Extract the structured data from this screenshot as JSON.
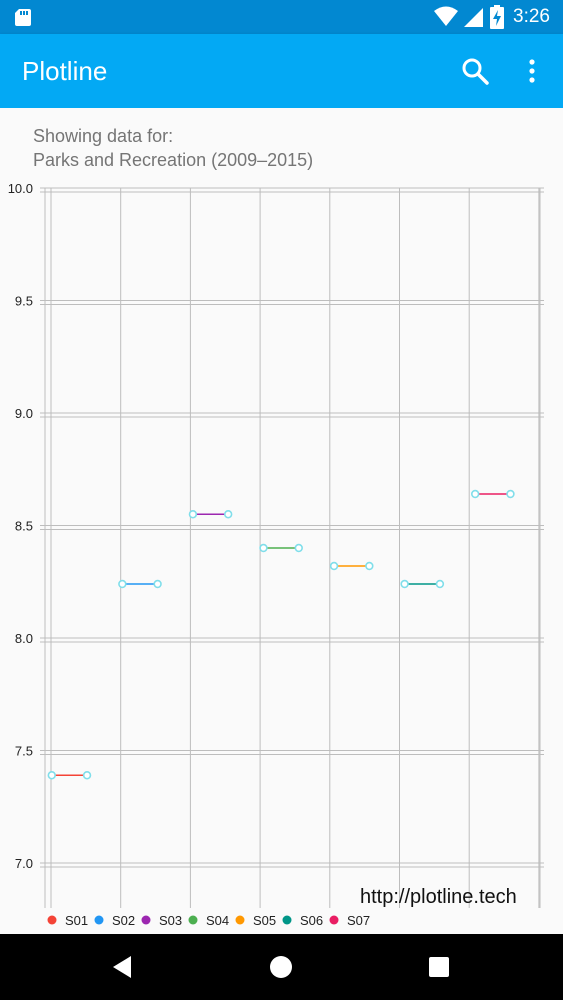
{
  "status_bar": {
    "time": "3:26",
    "icons": [
      "sd-card-icon",
      "wifi-icon",
      "signal-icon",
      "battery-charging-icon"
    ]
  },
  "app_bar": {
    "title": "Plotline",
    "actions": [
      "search-icon",
      "more-vert-icon"
    ]
  },
  "caption": {
    "line1": "Showing data for:",
    "line2": "Parks and Recreation (2009–2015)"
  },
  "watermark": "http://plotline.tech",
  "colors": {
    "status_bar": "#0288d1",
    "app_bar": "#03a9f4",
    "marker": "#80deea",
    "grid": "#bdbdbd"
  },
  "nav_bar": {
    "icons": [
      "back-icon",
      "home-icon",
      "recents-icon"
    ]
  },
  "chart_data": {
    "type": "line",
    "title": "",
    "xlabel": "",
    "ylabel": "",
    "ylim": [
      6.8,
      10.0
    ],
    "y_ticks": [
      "10.0",
      "9.5",
      "9.0",
      "8.5",
      "8.0",
      "7.5",
      "7.0"
    ],
    "x": [
      1,
      2,
      3,
      4,
      5,
      6,
      7,
      8,
      9,
      10,
      11,
      12,
      13,
      14
    ],
    "series": [
      {
        "name": "S01",
        "color": "#f44336",
        "x": [
          1,
          2
        ],
        "values": [
          7.39,
          7.39
        ]
      },
      {
        "name": "S02",
        "color": "#2196f3",
        "x": [
          3,
          4
        ],
        "values": [
          8.24,
          8.24
        ]
      },
      {
        "name": "S03",
        "color": "#9c27b0",
        "x": [
          5,
          6
        ],
        "values": [
          8.55,
          8.55
        ]
      },
      {
        "name": "S04",
        "color": "#4caf50",
        "x": [
          7,
          8
        ],
        "values": [
          8.4,
          8.4
        ]
      },
      {
        "name": "S05",
        "color": "#ff9800",
        "x": [
          9,
          10
        ],
        "values": [
          8.32,
          8.32
        ]
      },
      {
        "name": "S06",
        "color": "#009688",
        "x": [
          11,
          12
        ],
        "values": [
          8.24,
          8.24
        ]
      },
      {
        "name": "S07",
        "color": "#e91e63",
        "x": [
          13,
          14
        ],
        "values": [
          8.64,
          8.64
        ]
      }
    ],
    "legend_position": "bottom-left",
    "grid": true
  }
}
